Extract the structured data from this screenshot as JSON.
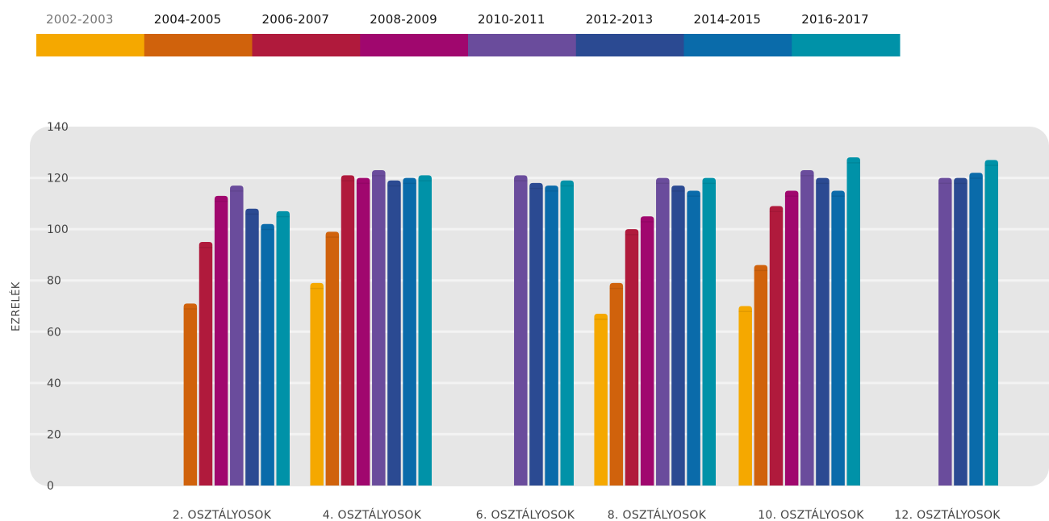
{
  "chart_data": {
    "type": "bar",
    "title": "",
    "xlabel": "",
    "ylabel": "EZRELÉK",
    "ylim": [
      0,
      140
    ],
    "yticks": [
      0,
      20,
      40,
      60,
      80,
      100,
      120,
      140
    ],
    "grid": true,
    "legend_position": "top",
    "categories": [
      "2. OSZTÁLYOSOK",
      "4. OSZTÁLYOSOK",
      "6. OSZTÁLYOSOK",
      "8. OSZTÁLYOSOK",
      "10. OSZTÁLYOSOK",
      "12. OSZTÁLYOSOK"
    ],
    "series": [
      {
        "name": "2002-2003",
        "color": "#F5A800",
        "values": [
          null,
          79,
          null,
          67,
          70,
          null
        ]
      },
      {
        "name": "2004-2005",
        "color": "#D0620C",
        "values": [
          71,
          99,
          null,
          79,
          86,
          null
        ]
      },
      {
        "name": "2006-2007",
        "color": "#B01A3C",
        "values": [
          95,
          121,
          null,
          100,
          109,
          null
        ]
      },
      {
        "name": "2008-2009",
        "color": "#A0076E",
        "values": [
          113,
          120,
          null,
          105,
          115,
          null
        ]
      },
      {
        "name": "2010-2011",
        "color": "#6A4C9C",
        "values": [
          117,
          123,
          121,
          120,
          123,
          120
        ]
      },
      {
        "name": "2012-2013",
        "color": "#2B4A92",
        "values": [
          108,
          119,
          118,
          117,
          120,
          120
        ]
      },
      {
        "name": "2014-2015",
        "color": "#0A6BAA",
        "values": [
          102,
          120,
          117,
          115,
          115,
          122
        ]
      },
      {
        "name": "2016-2017",
        "color": "#0092A8",
        "values": [
          107,
          121,
          119,
          120,
          128,
          127
        ]
      }
    ]
  }
}
